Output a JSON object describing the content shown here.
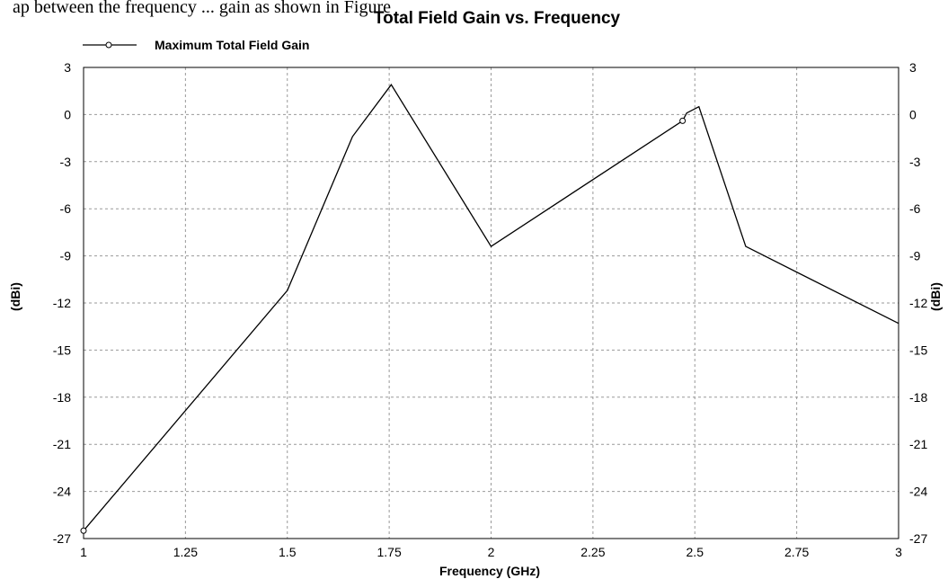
{
  "caption": "ap between the frequency ... gain as shown in Figure",
  "chart_data": {
    "type": "line",
    "title": "Total Field Gain vs. Frequency",
    "xlabel": "Frequency (GHz)",
    "ylabel": "(dBi)",
    "ylabel_right": "(dBi)",
    "xlim": [
      1,
      3
    ],
    "ylim": [
      -27,
      3
    ],
    "xticks": [
      1,
      1.25,
      1.5,
      1.75,
      2,
      2.25,
      2.5,
      2.75,
      3
    ],
    "xtick_labels": [
      "1",
      "1.25",
      "1.5",
      "1.75",
      "2",
      "2.25",
      "2.5",
      "2.75",
      "3"
    ],
    "yticks": [
      3,
      0,
      -3,
      -6,
      -9,
      -12,
      -15,
      -18,
      -21,
      -24,
      -27
    ],
    "ytick_labels": [
      "3",
      "0",
      "-3",
      "-6",
      "-9",
      "-12",
      "-15",
      "-18",
      "-21",
      "-24",
      "-27"
    ],
    "grid": true,
    "legend_position": "top-left",
    "series": [
      {
        "name": "Maximum Total Field Gain",
        "color": "#000000",
        "x": [
          1.0,
          1.5,
          1.66,
          1.755,
          2.0,
          2.47,
          2.48,
          2.51,
          2.625,
          3.0
        ],
        "y": [
          -26.5,
          -11.2,
          -1.4,
          1.9,
          -8.4,
          -0.4,
          0.1,
          0.5,
          -8.4,
          -13.3
        ],
        "markers_x": [
          1.0,
          2.47
        ],
        "markers_y": [
          -26.5,
          -0.4
        ]
      }
    ]
  }
}
